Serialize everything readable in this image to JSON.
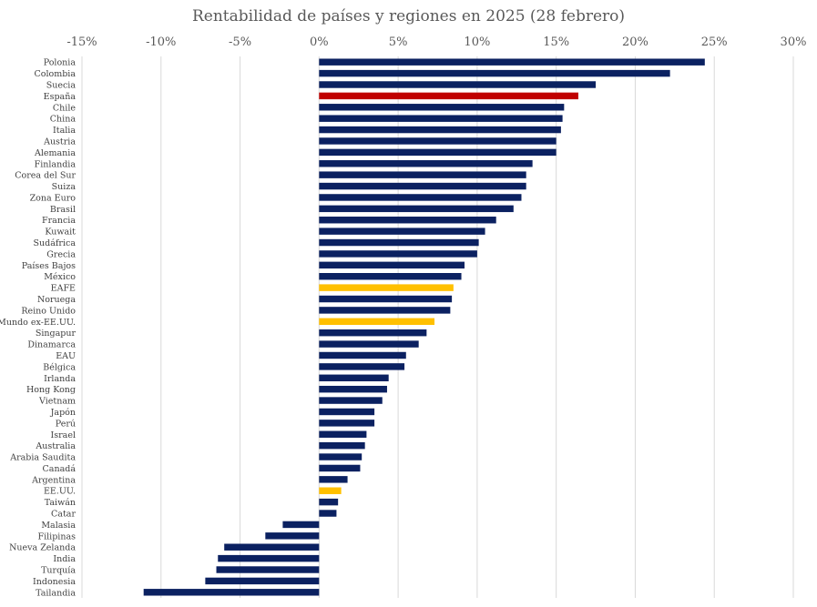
{
  "chart_data": {
    "type": "bar",
    "orientation": "horizontal",
    "title": "Rentabilidad de países y regiones en 2025 (28 febrero)",
    "xlabel": "",
    "ylabel": "",
    "xlim": [
      -15,
      30
    ],
    "x_ticks": [
      -15,
      -10,
      -5,
      0,
      5,
      10,
      15,
      20,
      25,
      30
    ],
    "x_tick_labels": [
      "-15%",
      "-10%",
      "-5%",
      "0%",
      "5%",
      "10%",
      "15%",
      "20%",
      "25%",
      "30%"
    ],
    "x_axis_position": "top",
    "grid": "vertical",
    "colors": {
      "default": "#0b2161",
      "spain": "#c00000",
      "aggregate": "#ffc000",
      "grid": "#d9d9d9",
      "text": "#595959"
    },
    "categories": [
      "Polonia",
      "Colombia",
      "Suecia",
      "España",
      "Chile",
      "China",
      "Italia",
      "Austria",
      "Alemania",
      "Finlandia",
      "Corea del Sur",
      "Suiza",
      "Zona Euro",
      "Brasil",
      "Francia",
      "Kuwait",
      "Sudáfrica",
      "Grecia",
      "Países Bajos",
      "México",
      "EAFE",
      "Noruega",
      "Reino Unido",
      "Mundo ex-EE.UU.",
      "Singapur",
      "Dinamarca",
      "EAU",
      "Bélgica",
      "Irlanda",
      "Hong Kong",
      "Vietnam",
      "Japón",
      "Perú",
      "Israel",
      "Australia",
      "Arabia Saudita",
      "Canadá",
      "Argentina",
      "EE.UU.",
      "Taiwán",
      "Catar",
      "Malasia",
      "Filipinas",
      "Nueva Zelanda",
      "India",
      "Turquía",
      "Indonesia",
      "Tailandia"
    ],
    "values": [
      24.4,
      22.2,
      17.5,
      16.4,
      15.5,
      15.4,
      15.3,
      15.0,
      15.0,
      13.5,
      13.1,
      13.1,
      12.8,
      12.3,
      11.2,
      10.5,
      10.1,
      10.0,
      9.2,
      9.0,
      8.5,
      8.4,
      8.3,
      7.3,
      6.8,
      6.3,
      5.5,
      5.4,
      4.4,
      4.3,
      4.0,
      3.5,
      3.5,
      3.0,
      2.9,
      2.7,
      2.6,
      1.8,
      1.4,
      1.2,
      1.1,
      -2.3,
      -3.4,
      -6.0,
      -6.4,
      -6.5,
      -7.2,
      -11.1
    ],
    "bar_color_keys": [
      "default",
      "default",
      "default",
      "spain",
      "default",
      "default",
      "default",
      "default",
      "default",
      "default",
      "default",
      "default",
      "default",
      "default",
      "default",
      "default",
      "default",
      "default",
      "default",
      "default",
      "aggregate",
      "default",
      "default",
      "aggregate",
      "default",
      "default",
      "default",
      "default",
      "default",
      "default",
      "default",
      "default",
      "default",
      "default",
      "default",
      "default",
      "default",
      "default",
      "aggregate",
      "default",
      "default",
      "default",
      "default",
      "default",
      "default",
      "default",
      "default",
      "default"
    ]
  }
}
